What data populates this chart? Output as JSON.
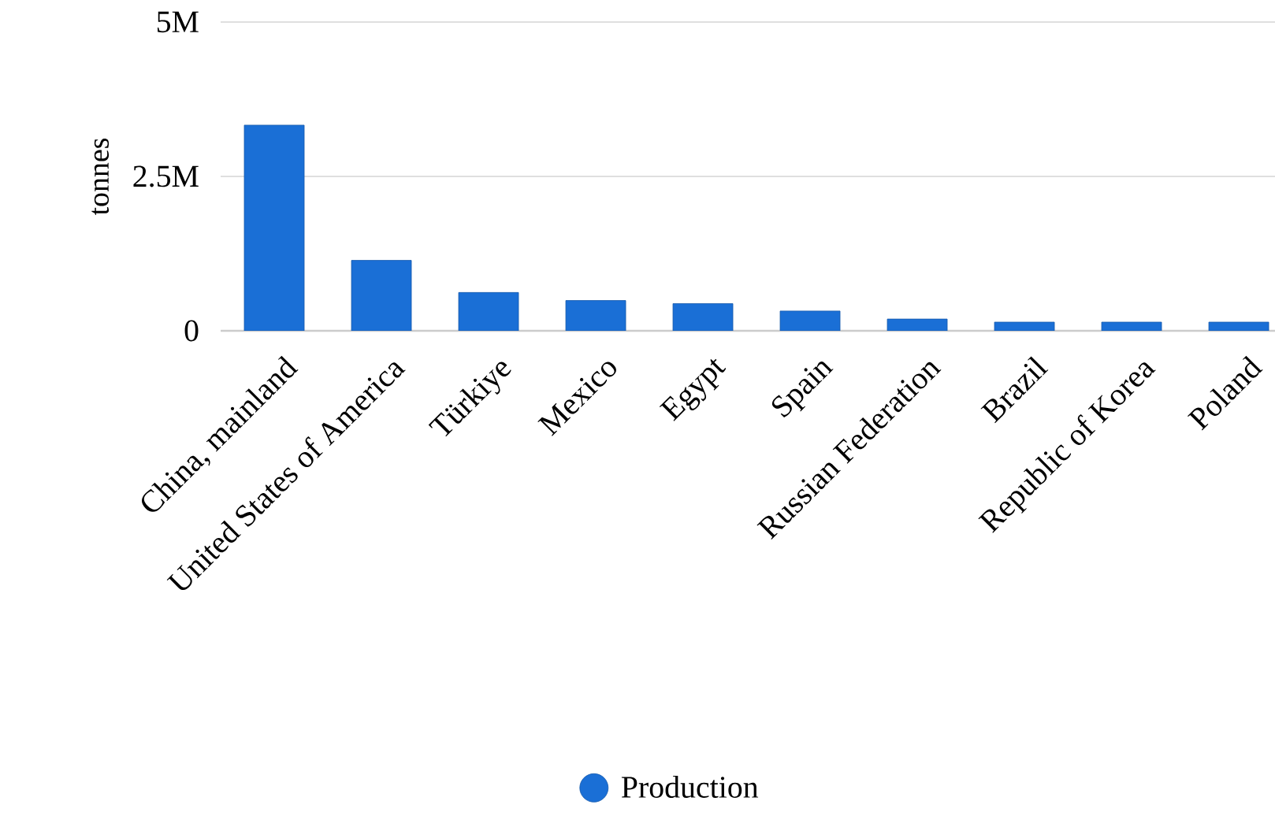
{
  "chart_data": {
    "type": "bar",
    "ylabel": "tonnes",
    "categories": [
      "China, mainland",
      "United States of America",
      "Türkiye",
      "Mexico",
      "Egypt",
      "Spain",
      "Russian Federation",
      "Brazil",
      "Republic of Korea",
      "Poland"
    ],
    "series": [
      {
        "name": "Production",
        "color": "#1a6fd6",
        "values": [
          3330000,
          1140000,
          620000,
          490000,
          440000,
          320000,
          190000,
          140000,
          140000,
          140000
        ]
      }
    ],
    "ylim": [
      0,
      5000000
    ],
    "yticks": [
      0,
      {
        "value": 2500000,
        "label": "2.5M"
      },
      {
        "value": 5000000,
        "label": "5M"
      }
    ],
    "grid": "y",
    "legend": "bottom",
    "marker": "circle"
  }
}
